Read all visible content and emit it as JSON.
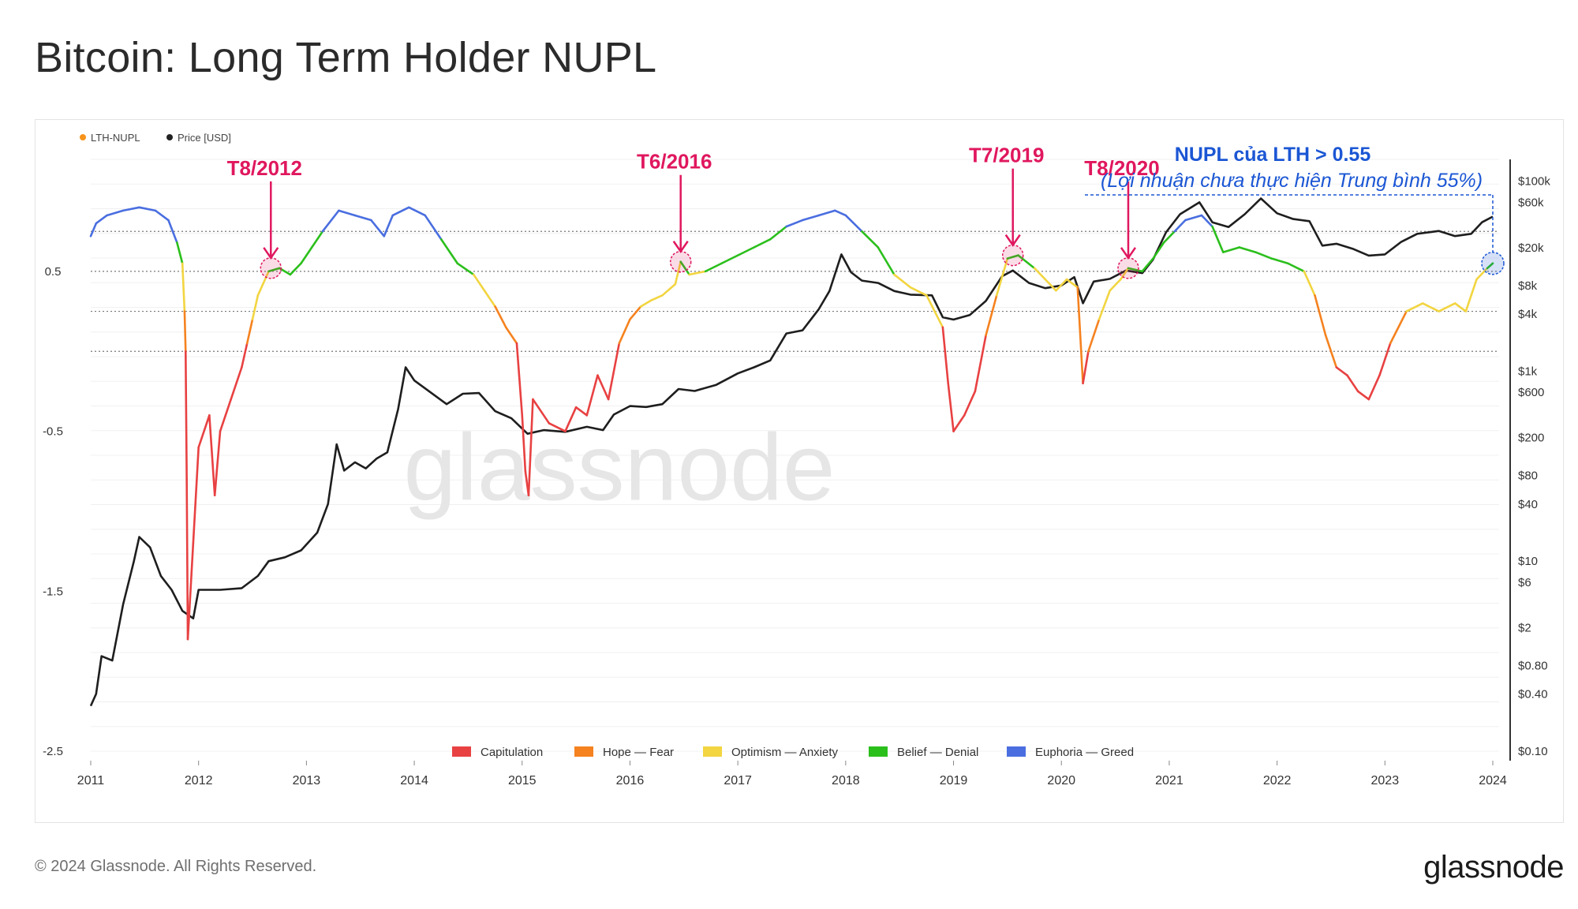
{
  "title": "Bitcoin: Long Term Holder NUPL",
  "footer": "© 2024 Glassnode. All Rights Reserved.",
  "brand": "glassnode",
  "watermark": "glassnode",
  "chart_data": {
    "type": "line",
    "title": "Bitcoin: Long Term Holder NUPL",
    "legend_top": [
      {
        "label": "LTH-NUPL",
        "color": "#f7931a"
      },
      {
        "label": "Price [USD]",
        "color": "#222222"
      }
    ],
    "legend_bottom": [
      {
        "label": "Capitulation",
        "color": "#e84142"
      },
      {
        "label": "Hope — Fear",
        "color": "#f5821f"
      },
      {
        "label": "Optimism — Anxiety",
        "color": "#f2d541"
      },
      {
        "label": "Belief — Denial",
        "color": "#2bbf1c"
      },
      {
        "label": "Euphoria — Greed",
        "color": "#4a6ee0"
      }
    ],
    "x_ticks": [
      "2011",
      "2012",
      "2013",
      "2014",
      "2015",
      "2016",
      "2017",
      "2018",
      "2019",
      "2020",
      "2021",
      "2022",
      "2023",
      "2024"
    ],
    "y_left_ticks": [
      {
        "label": "0.5",
        "value": 0.5
      },
      {
        "label": "-0.5",
        "value": -0.5
      },
      {
        "label": "-1.5",
        "value": -1.5
      },
      {
        "label": "-2.5",
        "value": -2.5
      }
    ],
    "y_right_ticks": [
      {
        "label": "$100k",
        "value": 100000
      },
      {
        "label": "$60k",
        "value": 60000
      },
      {
        "label": "$20k",
        "value": 20000
      },
      {
        "label": "$8k",
        "value": 8000
      },
      {
        "label": "$4k",
        "value": 4000
      },
      {
        "label": "$1k",
        "value": 1000
      },
      {
        "label": "$600",
        "value": 600
      },
      {
        "label": "$200",
        "value": 200
      },
      {
        "label": "$80",
        "value": 80
      },
      {
        "label": "$40",
        "value": 40
      },
      {
        "label": "$10",
        "value": 10
      },
      {
        "label": "$6",
        "value": 6
      },
      {
        "label": "$2",
        "value": 2
      },
      {
        "label": "$0.80",
        "value": 0.8
      },
      {
        "label": "$0.40",
        "value": 0.4
      },
      {
        "label": "$0.10",
        "value": 0.1
      }
    ],
    "nupl_range": [
      -2.5,
      1.2
    ],
    "price_log_range": [
      0.1,
      170000
    ],
    "zone_thresholds": [
      0.75,
      0.5,
      0.25,
      0
    ],
    "lth_nupl": [
      [
        2011.0,
        0.72
      ],
      [
        2011.05,
        0.8
      ],
      [
        2011.15,
        0.85
      ],
      [
        2011.3,
        0.88
      ],
      [
        2011.45,
        0.9
      ],
      [
        2011.6,
        0.88
      ],
      [
        2011.72,
        0.82
      ],
      [
        2011.8,
        0.68
      ],
      [
        2011.85,
        0.55
      ],
      [
        2011.87,
        0.25
      ],
      [
        2011.88,
        0.0
      ],
      [
        2011.89,
        -0.8
      ],
      [
        2011.9,
        -1.8
      ],
      [
        2011.95,
        -1.2
      ],
      [
        2012.0,
        -0.6
      ],
      [
        2012.1,
        -0.4
      ],
      [
        2012.15,
        -0.9
      ],
      [
        2012.2,
        -0.5
      ],
      [
        2012.3,
        -0.3
      ],
      [
        2012.4,
        -0.1
      ],
      [
        2012.45,
        0.05
      ],
      [
        2012.5,
        0.2
      ],
      [
        2012.55,
        0.35
      ],
      [
        2012.65,
        0.5
      ],
      [
        2012.75,
        0.52
      ],
      [
        2012.85,
        0.48
      ],
      [
        2012.95,
        0.55
      ],
      [
        2013.05,
        0.65
      ],
      [
        2013.15,
        0.75
      ],
      [
        2013.3,
        0.88
      ],
      [
        2013.45,
        0.85
      ],
      [
        2013.6,
        0.82
      ],
      [
        2013.72,
        0.72
      ],
      [
        2013.8,
        0.85
      ],
      [
        2013.95,
        0.9
      ],
      [
        2014.1,
        0.85
      ],
      [
        2014.25,
        0.7
      ],
      [
        2014.4,
        0.55
      ],
      [
        2014.55,
        0.48
      ],
      [
        2014.65,
        0.38
      ],
      [
        2014.75,
        0.28
      ],
      [
        2014.85,
        0.15
      ],
      [
        2014.95,
        0.05
      ],
      [
        2015.0,
        -0.4
      ],
      [
        2015.03,
        -0.75
      ],
      [
        2015.06,
        -0.9
      ],
      [
        2015.1,
        -0.3
      ],
      [
        2015.25,
        -0.45
      ],
      [
        2015.4,
        -0.5
      ],
      [
        2015.5,
        -0.35
      ],
      [
        2015.6,
        -0.4
      ],
      [
        2015.7,
        -0.15
      ],
      [
        2015.8,
        -0.3
      ],
      [
        2015.9,
        0.05
      ],
      [
        2016.0,
        0.2
      ],
      [
        2016.1,
        0.28
      ],
      [
        2016.2,
        0.32
      ],
      [
        2016.3,
        0.35
      ],
      [
        2016.42,
        0.42
      ],
      [
        2016.47,
        0.56
      ],
      [
        2016.55,
        0.48
      ],
      [
        2016.7,
        0.5
      ],
      [
        2016.85,
        0.55
      ],
      [
        2017.0,
        0.6
      ],
      [
        2017.15,
        0.65
      ],
      [
        2017.3,
        0.7
      ],
      [
        2017.45,
        0.78
      ],
      [
        2017.6,
        0.82
      ],
      [
        2017.75,
        0.85
      ],
      [
        2017.9,
        0.88
      ],
      [
        2018.0,
        0.85
      ],
      [
        2018.15,
        0.75
      ],
      [
        2018.3,
        0.65
      ],
      [
        2018.45,
        0.48
      ],
      [
        2018.6,
        0.4
      ],
      [
        2018.75,
        0.35
      ],
      [
        2018.9,
        0.15
      ],
      [
        2018.95,
        -0.2
      ],
      [
        2019.0,
        -0.5
      ],
      [
        2019.1,
        -0.4
      ],
      [
        2019.2,
        -0.25
      ],
      [
        2019.3,
        0.1
      ],
      [
        2019.4,
        0.35
      ],
      [
        2019.5,
        0.58
      ],
      [
        2019.6,
        0.6
      ],
      [
        2019.75,
        0.52
      ],
      [
        2019.85,
        0.45
      ],
      [
        2019.95,
        0.38
      ],
      [
        2020.05,
        0.45
      ],
      [
        2020.15,
        0.4
      ],
      [
        2020.2,
        -0.2
      ],
      [
        2020.25,
        0.0
      ],
      [
        2020.35,
        0.2
      ],
      [
        2020.45,
        0.38
      ],
      [
        2020.55,
        0.45
      ],
      [
        2020.62,
        0.52
      ],
      [
        2020.75,
        0.5
      ],
      [
        2020.85,
        0.58
      ],
      [
        2020.95,
        0.68
      ],
      [
        2021.05,
        0.75
      ],
      [
        2021.15,
        0.82
      ],
      [
        2021.3,
        0.85
      ],
      [
        2021.4,
        0.78
      ],
      [
        2021.5,
        0.62
      ],
      [
        2021.65,
        0.65
      ],
      [
        2021.8,
        0.62
      ],
      [
        2021.95,
        0.58
      ],
      [
        2022.1,
        0.55
      ],
      [
        2022.25,
        0.5
      ],
      [
        2022.35,
        0.35
      ],
      [
        2022.45,
        0.1
      ],
      [
        2022.55,
        -0.1
      ],
      [
        2022.65,
        -0.15
      ],
      [
        2022.75,
        -0.25
      ],
      [
        2022.85,
        -0.3
      ],
      [
        2022.95,
        -0.15
      ],
      [
        2023.05,
        0.05
      ],
      [
        2023.2,
        0.25
      ],
      [
        2023.35,
        0.3
      ],
      [
        2023.5,
        0.25
      ],
      [
        2023.65,
        0.3
      ],
      [
        2023.75,
        0.25
      ],
      [
        2023.85,
        0.45
      ],
      [
        2023.95,
        0.52
      ],
      [
        2024.0,
        0.55
      ]
    ],
    "price_usd": [
      [
        2011.0,
        0.3
      ],
      [
        2011.05,
        0.4
      ],
      [
        2011.1,
        1.0
      ],
      [
        2011.2,
        0.9
      ],
      [
        2011.3,
        3.5
      ],
      [
        2011.4,
        10
      ],
      [
        2011.45,
        18
      ],
      [
        2011.55,
        14
      ],
      [
        2011.65,
        7
      ],
      [
        2011.75,
        5
      ],
      [
        2011.85,
        3
      ],
      [
        2011.95,
        2.5
      ],
      [
        2012.0,
        5
      ],
      [
        2012.2,
        5
      ],
      [
        2012.4,
        5.2
      ],
      [
        2012.55,
        7
      ],
      [
        2012.65,
        10
      ],
      [
        2012.8,
        11
      ],
      [
        2012.95,
        13
      ],
      [
        2013.1,
        20
      ],
      [
        2013.2,
        40
      ],
      [
        2013.28,
        170
      ],
      [
        2013.35,
        90
      ],
      [
        2013.45,
        110
      ],
      [
        2013.55,
        95
      ],
      [
        2013.65,
        120
      ],
      [
        2013.75,
        140
      ],
      [
        2013.85,
        400
      ],
      [
        2013.92,
        1100
      ],
      [
        2014.0,
        800
      ],
      [
        2014.15,
        600
      ],
      [
        2014.3,
        450
      ],
      [
        2014.45,
        580
      ],
      [
        2014.6,
        590
      ],
      [
        2014.75,
        380
      ],
      [
        2014.9,
        320
      ],
      [
        2015.05,
        220
      ],
      [
        2015.2,
        240
      ],
      [
        2015.4,
        230
      ],
      [
        2015.6,
        260
      ],
      [
        2015.75,
        240
      ],
      [
        2015.85,
        350
      ],
      [
        2016.0,
        430
      ],
      [
        2016.15,
        420
      ],
      [
        2016.3,
        450
      ],
      [
        2016.45,
        650
      ],
      [
        2016.6,
        620
      ],
      [
        2016.8,
        720
      ],
      [
        2017.0,
        950
      ],
      [
        2017.15,
        1100
      ],
      [
        2017.3,
        1300
      ],
      [
        2017.45,
        2500
      ],
      [
        2017.6,
        2700
      ],
      [
        2017.75,
        4500
      ],
      [
        2017.85,
        7000
      ],
      [
        2017.96,
        17000
      ],
      [
        2018.05,
        11000
      ],
      [
        2018.15,
        9000
      ],
      [
        2018.3,
        8500
      ],
      [
        2018.45,
        7000
      ],
      [
        2018.6,
        6400
      ],
      [
        2018.8,
        6300
      ],
      [
        2018.9,
        3700
      ],
      [
        2019.0,
        3500
      ],
      [
        2019.15,
        3900
      ],
      [
        2019.3,
        5500
      ],
      [
        2019.45,
        10000
      ],
      [
        2019.55,
        11500
      ],
      [
        2019.7,
        8500
      ],
      [
        2019.85,
        7500
      ],
      [
        2020.0,
        8000
      ],
      [
        2020.12,
        9800
      ],
      [
        2020.2,
        5200
      ],
      [
        2020.3,
        8800
      ],
      [
        2020.45,
        9400
      ],
      [
        2020.6,
        11500
      ],
      [
        2020.75,
        10800
      ],
      [
        2020.85,
        15000
      ],
      [
        2020.97,
        29000
      ],
      [
        2021.1,
        45000
      ],
      [
        2021.28,
        60000
      ],
      [
        2021.4,
        37000
      ],
      [
        2021.55,
        33000
      ],
      [
        2021.7,
        45000
      ],
      [
        2021.85,
        66000
      ],
      [
        2022.0,
        46000
      ],
      [
        2022.15,
        40000
      ],
      [
        2022.3,
        38000
      ],
      [
        2022.42,
        21000
      ],
      [
        2022.55,
        22000
      ],
      [
        2022.7,
        19500
      ],
      [
        2022.85,
        16500
      ],
      [
        2023.0,
        17000
      ],
      [
        2023.15,
        23000
      ],
      [
        2023.3,
        28000
      ],
      [
        2023.5,
        30000
      ],
      [
        2023.65,
        26500
      ],
      [
        2023.8,
        28000
      ],
      [
        2023.9,
        37000
      ],
      [
        2024.0,
        42500
      ]
    ],
    "annotations": [
      {
        "label": "T8/2012",
        "x": 2012.67,
        "y": 0.52
      },
      {
        "label": "T6/2016",
        "x": 2016.47,
        "y": 0.56
      },
      {
        "label": "T7/2019",
        "x": 2019.55,
        "y": 0.6
      },
      {
        "label": "T8/2020",
        "x": 2020.62,
        "y": 0.52
      }
    ],
    "callout": {
      "line1": "NUPL của LTH > 0.55",
      "line2": "(Lợi nhuận chưa thực hiện Trung bình 55%)",
      "x": 2024.0,
      "y": 0.55
    }
  }
}
